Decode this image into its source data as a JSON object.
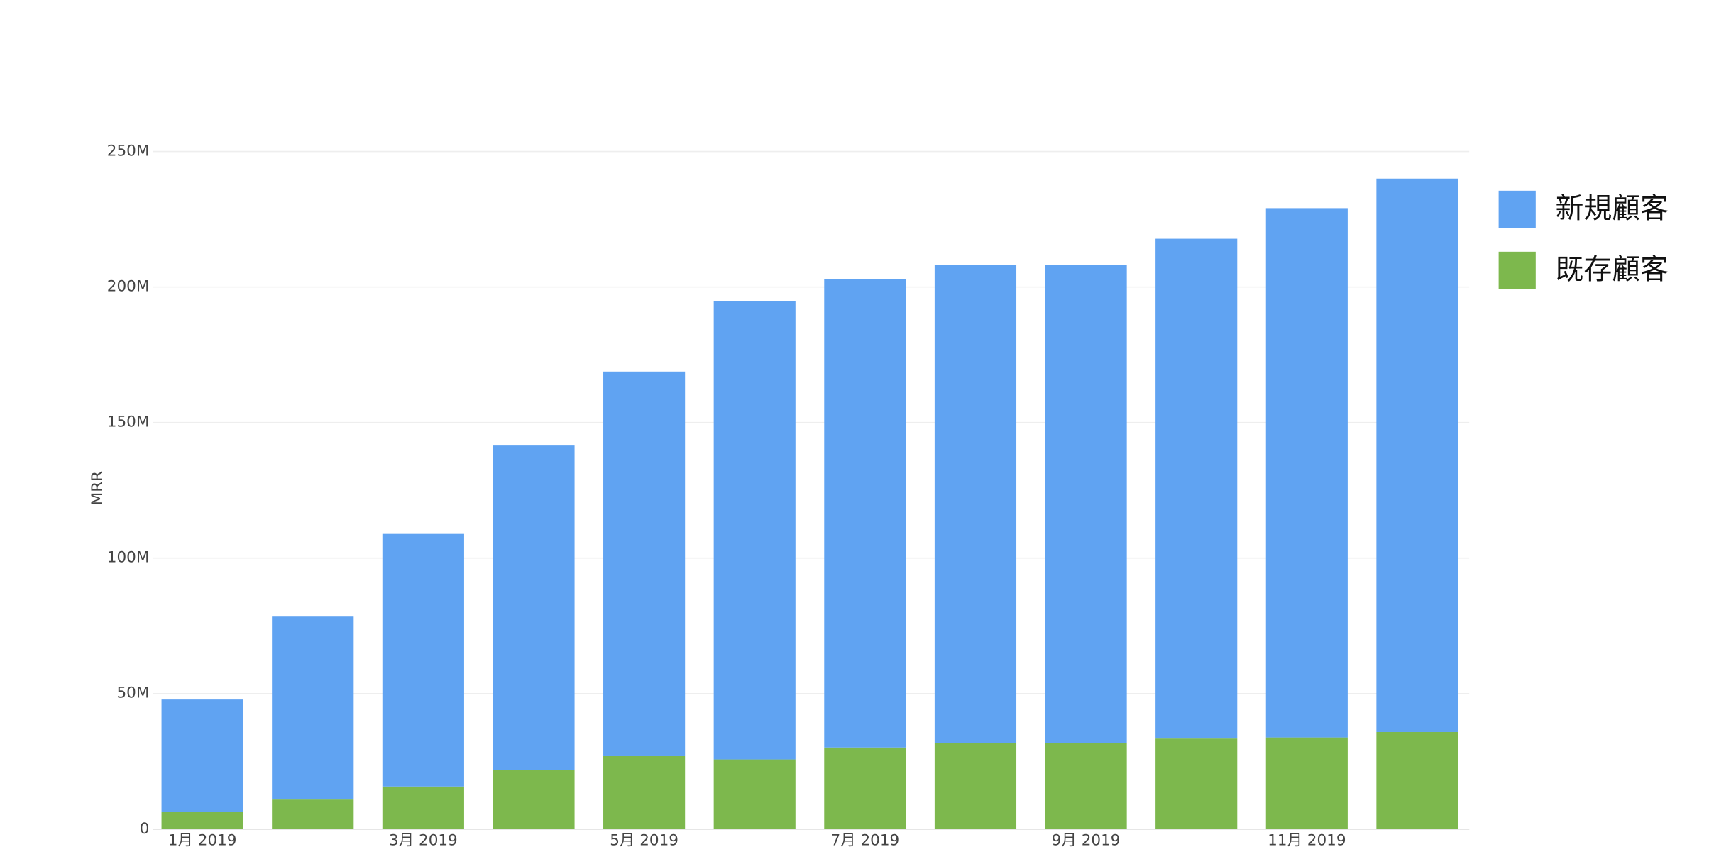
{
  "chart_data": {
    "type": "bar",
    "stacked": true,
    "y_label": "MRR",
    "categories": [
      "1月 2019",
      null,
      "3月 2019",
      null,
      "5月 2019",
      null,
      "7月 2019",
      null,
      "9月 2019",
      null,
      "11月 2019",
      null
    ],
    "series": [
      {
        "name": "新規顧客",
        "color": "#60a3f2",
        "values": [
          41400000,
          67500000,
          93200000,
          119800000,
          141900000,
          169200000,
          172900000,
          176400000,
          176400000,
          184400000,
          195300000,
          204200000
        ]
      },
      {
        "name": "既存顧客",
        "color": "#7db84d",
        "values": [
          6400000,
          10900000,
          15700000,
          21700000,
          26900000,
          25700000,
          30100000,
          31800000,
          31800000,
          33400000,
          33800000,
          35800000
        ]
      }
    ],
    "ylim": [
      0,
      250000000
    ],
    "yticks": [
      0,
      {
        "value": 50000000,
        "label": "50M"
      },
      {
        "value": 100000000,
        "label": "100M"
      },
      {
        "value": 150000000,
        "label": "150M"
      },
      {
        "value": 200000000,
        "label": "200M"
      },
      {
        "value": 250000000,
        "label": "250M"
      }
    ],
    "grid": true,
    "legend": "right"
  }
}
